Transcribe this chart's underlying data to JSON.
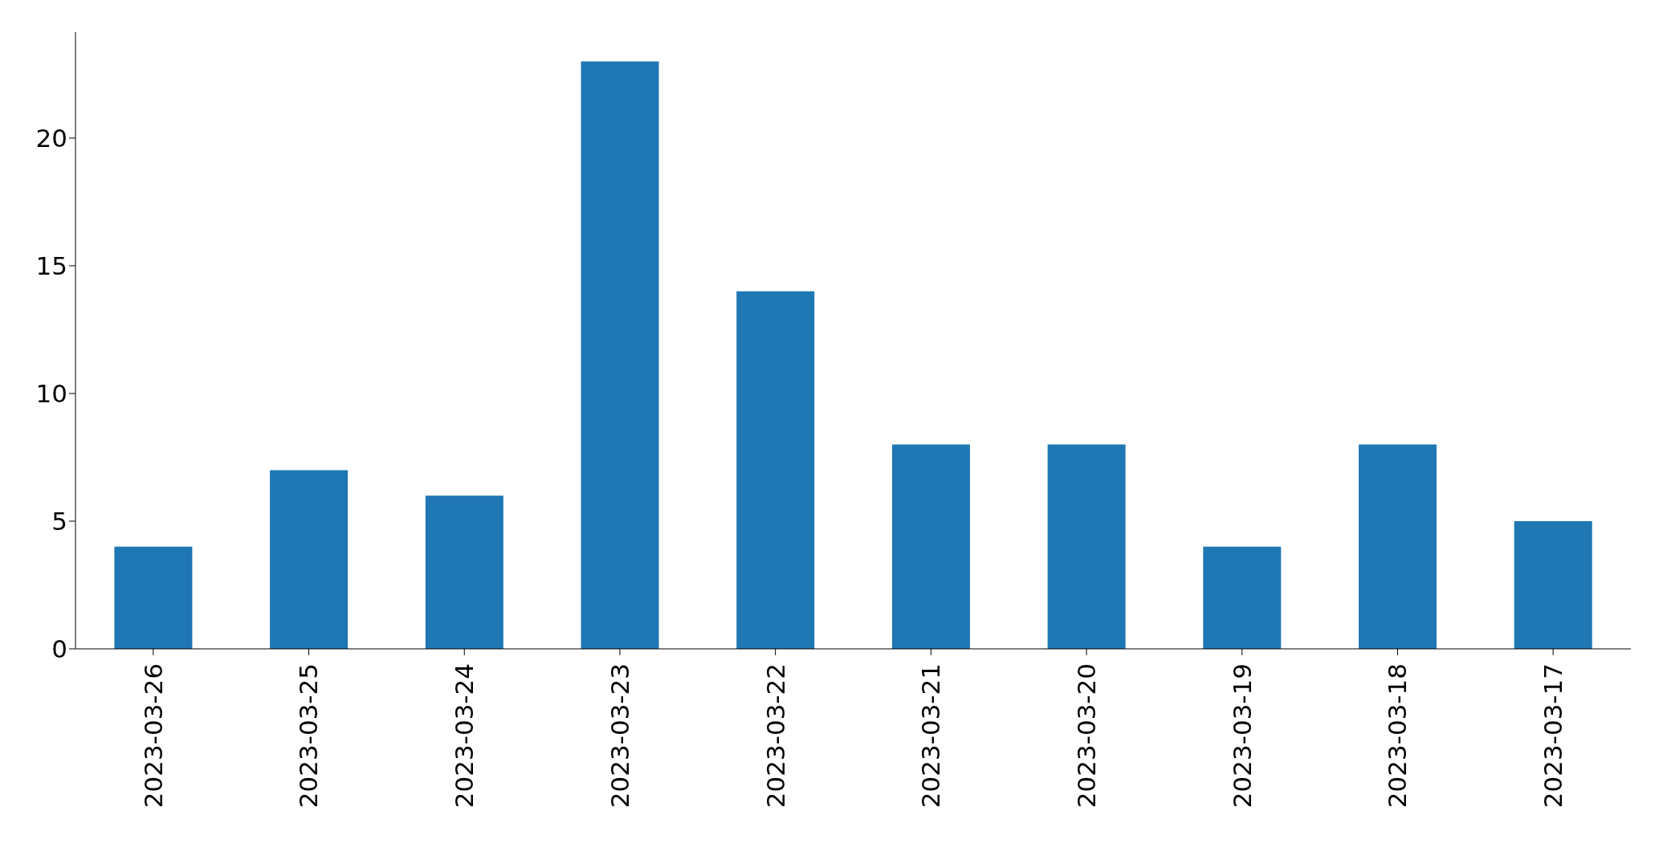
{
  "chart_data": {
    "type": "bar",
    "categories": [
      "2023-03-26",
      "2023-03-25",
      "2023-03-24",
      "2023-03-23",
      "2023-03-22",
      "2023-03-21",
      "2023-03-20",
      "2023-03-19",
      "2023-03-18",
      "2023-03-17"
    ],
    "values": [
      4,
      7,
      6,
      23,
      14,
      8,
      8,
      4,
      8,
      5
    ],
    "color": "#1f77b4",
    "ylim": [
      0,
      24.15
    ],
    "yticks": [
      0,
      5,
      10,
      15,
      20
    ]
  }
}
